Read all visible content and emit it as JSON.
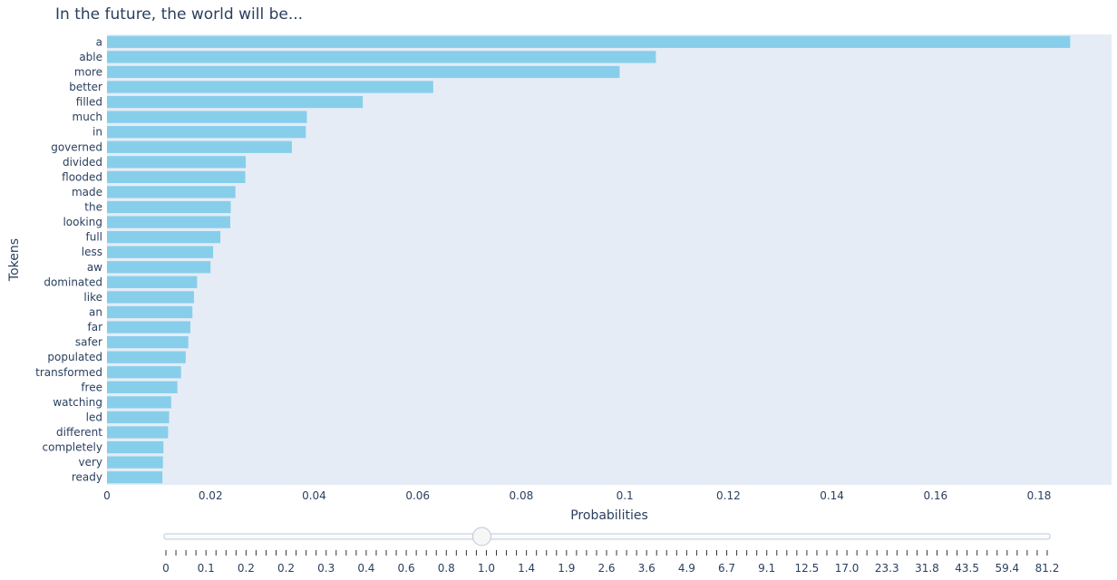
{
  "chart_data": {
    "type": "bar",
    "orientation": "horizontal",
    "title": "In the future, the world will be...",
    "xlabel": "Probabilities",
    "ylabel": "Tokens",
    "xlim": [
      0,
      0.194
    ],
    "x_ticks": [
      0,
      0.02,
      0.04,
      0.06,
      0.08,
      0.1,
      0.12,
      0.14,
      0.16,
      0.18
    ],
    "x_tick_labels": [
      "0",
      "0.02",
      "0.04",
      "0.06",
      "0.08",
      "0.1",
      "0.12",
      "0.14",
      "0.16",
      "0.18"
    ],
    "categories": [
      "a",
      "able",
      "more",
      "better",
      "filled",
      "much",
      "in",
      "governed",
      "divided",
      "flooded",
      "made",
      "the",
      "looking",
      "full",
      "less",
      "aw",
      "dominated",
      "like",
      "an",
      "far",
      "safer",
      "populated",
      "transformed",
      "free",
      "watching",
      "led",
      "different",
      "completely",
      "very",
      "ready"
    ],
    "values": [
      0.186,
      0.106,
      0.099,
      0.063,
      0.0494,
      0.0386,
      0.0384,
      0.0357,
      0.0268,
      0.0267,
      0.0248,
      0.0239,
      0.0238,
      0.0219,
      0.0205,
      0.02,
      0.0174,
      0.0168,
      0.0165,
      0.0161,
      0.0157,
      0.0152,
      0.0143,
      0.0136,
      0.0124,
      0.012,
      0.0118,
      0.0109,
      0.0108,
      0.0107
    ],
    "bar_color": "#87ceeb",
    "plot_background": "#e5ecf6",
    "grid": false,
    "legend": "none"
  },
  "slider": {
    "labels": [
      "0",
      "0.1",
      "0.2",
      "0.2",
      "0.3",
      "0.4",
      "0.6",
      "0.8",
      "1.0",
      "1.4",
      "1.9",
      "2.6",
      "3.6",
      "4.9",
      "6.7",
      "9.1",
      "12.5",
      "17.0",
      "23.3",
      "31.8",
      "43.5",
      "59.4",
      "81.2"
    ],
    "current_value": "1.0",
    "current_index": 8,
    "minor_ticks_per_step": 4
  }
}
